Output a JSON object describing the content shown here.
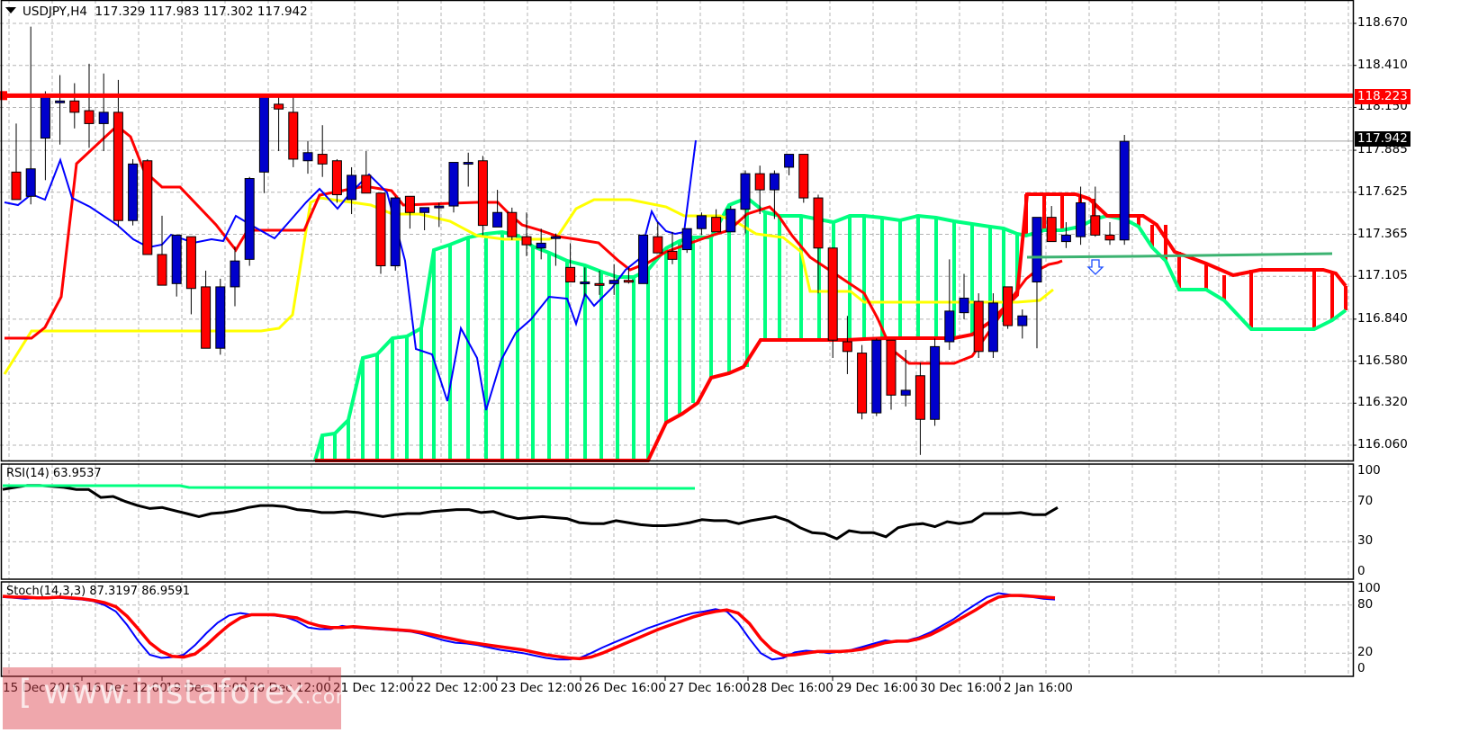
{
  "header": {
    "symbol": "USDJPY,H4",
    "ohlc": "117.329 117.983 117.302 117.942"
  },
  "price_axis": {
    "ticks": [
      "118.670",
      "118.410",
      "118.150",
      "117.885",
      "117.625",
      "117.365",
      "117.105",
      "116.840",
      "116.580",
      "116.320",
      "116.060"
    ],
    "resistance_tag": "118.223",
    "current_tag": "117.942"
  },
  "rsi_panel": {
    "label": "RSI(14) 63.9537",
    "ticks": [
      "100",
      "70",
      "30",
      "0"
    ]
  },
  "stoch_panel": {
    "label": "Stoch(14,3,3) 87.3197 86.9591",
    "ticks": [
      "100",
      "80",
      "20",
      "0"
    ]
  },
  "time_axis": {
    "labels": [
      "15 Dec 2016",
      "16 Dec 12:00",
      "19 Dec 12:00",
      "20 Dec 12:00",
      "21 Dec 12:00",
      "22 Dec 12:00",
      "23 Dec 12:00",
      "26 Dec 16:00",
      "27 Dec 16:00",
      "28 Dec 16:00",
      "29 Dec 16:00",
      "30 Dec 16:00",
      "2 Jan 16:00"
    ]
  },
  "watermark": {
    "prefix": "[ www.instaforex",
    "suffix": ".com ]"
  },
  "colors": {
    "bull_candle": "#0000cc",
    "bear_candle": "#ff0000",
    "tenkan": "#ff0000",
    "kijun": "#0000ff",
    "chikou": "#0000ff",
    "senkou_a": "#00ff80",
    "senkou_b": "#ff0000",
    "yellow_line": "#ffff00",
    "resistance": "#ff0000",
    "support_line": "#3cb371",
    "rsi_line": "#000000",
    "rsi_trend": "#00ff80",
    "stoch_main": "#0000ff",
    "stoch_signal": "#ff0000"
  },
  "chart_data": {
    "type": "candlestick",
    "title": "USDJPY,H4",
    "ohlc_last": {
      "open": 117.329,
      "high": 117.983,
      "low": 117.302,
      "close": 117.942
    },
    "ylim": [
      116.0,
      118.8
    ],
    "y_ticks": [
      118.67,
      118.41,
      118.15,
      117.885,
      117.625,
      117.365,
      117.105,
      116.84,
      116.58,
      116.32,
      116.06
    ],
    "x_labels": [
      "15 Dec 2016",
      "16 Dec 12:00",
      "19 Dec 12:00",
      "20 Dec 12:00",
      "21 Dec 12:00",
      "22 Dec 12:00",
      "23 Dec 12:00",
      "26 Dec 16:00",
      "27 Dec 16:00",
      "28 Dec 16:00",
      "29 Dec 16:00",
      "30 Dec 16:00",
      "2 Jan 16:00"
    ],
    "grid": true,
    "candles": [
      {
        "o": 117.75,
        "h": 118.05,
        "l": 117.58,
        "c": 117.58
      },
      {
        "o": 117.6,
        "h": 118.65,
        "l": 117.55,
        "c": 117.77
      },
      {
        "o": 117.96,
        "h": 118.25,
        "l": 117.7,
        "c": 118.23
      },
      {
        "o": 118.18,
        "h": 118.35,
        "l": 117.92,
        "c": 118.19
      },
      {
        "o": 118.19,
        "h": 118.3,
        "l": 118.02,
        "c": 118.12
      },
      {
        "o": 118.13,
        "h": 118.42,
        "l": 117.9,
        "c": 118.05
      },
      {
        "o": 118.05,
        "h": 118.36,
        "l": 117.88,
        "c": 118.12
      },
      {
        "o": 118.12,
        "h": 118.32,
        "l": 117.41,
        "c": 117.45
      },
      {
        "o": 117.45,
        "h": 117.83,
        "l": 117.42,
        "c": 117.8
      },
      {
        "o": 117.82,
        "h": 117.83,
        "l": 117.28,
        "c": 117.24
      },
      {
        "o": 117.24,
        "h": 117.48,
        "l": 117.05,
        "c": 117.05
      },
      {
        "o": 117.06,
        "h": 117.36,
        "l": 116.98,
        "c": 117.36
      },
      {
        "o": 117.35,
        "h": 117.35,
        "l": 116.87,
        "c": 117.03
      },
      {
        "o": 117.04,
        "h": 117.14,
        "l": 116.66,
        "c": 116.66
      },
      {
        "o": 116.66,
        "h": 117.09,
        "l": 116.62,
        "c": 117.04
      },
      {
        "o": 117.04,
        "h": 117.29,
        "l": 116.92,
        "c": 117.2
      },
      {
        "o": 117.21,
        "h": 117.72,
        "l": 117.17,
        "c": 117.71
      },
      {
        "o": 117.75,
        "h": 118.23,
        "l": 117.62,
        "c": 118.23
      },
      {
        "o": 118.17,
        "h": 118.22,
        "l": 117.88,
        "c": 118.14
      },
      {
        "o": 118.12,
        "h": 118.22,
        "l": 117.78,
        "c": 117.83
      },
      {
        "o": 117.82,
        "h": 117.94,
        "l": 117.74,
        "c": 117.87
      },
      {
        "o": 117.86,
        "h": 118.04,
        "l": 117.72,
        "c": 117.8
      },
      {
        "o": 117.82,
        "h": 117.83,
        "l": 117.56,
        "c": 117.61
      },
      {
        "o": 117.58,
        "h": 117.78,
        "l": 117.49,
        "c": 117.73
      },
      {
        "o": 117.73,
        "h": 117.88,
        "l": 117.62,
        "c": 117.62
      },
      {
        "o": 117.62,
        "h": 117.62,
        "l": 117.12,
        "c": 117.17
      },
      {
        "o": 117.17,
        "h": 117.6,
        "l": 117.14,
        "c": 117.59
      },
      {
        "o": 117.6,
        "h": 117.6,
        "l": 117.4,
        "c": 117.5
      },
      {
        "o": 117.5,
        "h": 117.53,
        "l": 117.39,
        "c": 117.53
      },
      {
        "o": 117.53,
        "h": 117.56,
        "l": 117.41,
        "c": 117.54
      },
      {
        "o": 117.54,
        "h": 117.8,
        "l": 117.5,
        "c": 117.81
      },
      {
        "o": 117.81,
        "h": 117.87,
        "l": 117.66,
        "c": 117.81
      },
      {
        "o": 117.82,
        "h": 117.85,
        "l": 117.36,
        "c": 117.42
      },
      {
        "o": 117.41,
        "h": 117.64,
        "l": 117.47,
        "c": 117.5
      },
      {
        "o": 117.5,
        "h": 117.53,
        "l": 117.33,
        "c": 117.35
      },
      {
        "o": 117.35,
        "h": 117.5,
        "l": 117.23,
        "c": 117.3
      },
      {
        "o": 117.28,
        "h": 117.4,
        "l": 117.21,
        "c": 117.31
      },
      {
        "o": 117.34,
        "h": 117.37,
        "l": 117.17,
        "c": 117.35
      },
      {
        "o": 117.16,
        "h": 117.31,
        "l": 117.07,
        "c": 117.07
      },
      {
        "o": 117.07,
        "h": 117.16,
        "l": 116.98,
        "c": 117.07
      },
      {
        "o": 117.06,
        "h": 117.14,
        "l": 116.99,
        "c": 117.05
      },
      {
        "o": 117.06,
        "h": 117.18,
        "l": 116.99,
        "c": 117.08
      },
      {
        "o": 117.08,
        "h": 117.16,
        "l": 117.06,
        "c": 117.07
      },
      {
        "o": 117.06,
        "h": 117.33,
        "l": 117.06,
        "c": 117.36
      },
      {
        "o": 117.35,
        "h": 117.44,
        "l": 117.25,
        "c": 117.25
      },
      {
        "o": 117.26,
        "h": 117.38,
        "l": 117.18,
        "c": 117.21
      },
      {
        "o": 117.27,
        "h": 117.4,
        "l": 117.25,
        "c": 117.4
      },
      {
        "o": 117.4,
        "h": 117.5,
        "l": 117.36,
        "c": 117.48
      },
      {
        "o": 117.47,
        "h": 117.52,
        "l": 117.4,
        "c": 117.38
      },
      {
        "o": 117.38,
        "h": 117.54,
        "l": 117.42,
        "c": 117.52
      },
      {
        "o": 117.52,
        "h": 117.76,
        "l": 117.37,
        "c": 117.74
      },
      {
        "o": 117.74,
        "h": 117.79,
        "l": 117.49,
        "c": 117.64
      },
      {
        "o": 117.64,
        "h": 117.76,
        "l": 117.46,
        "c": 117.74
      },
      {
        "o": 117.78,
        "h": 117.86,
        "l": 117.73,
        "c": 117.86
      },
      {
        "o": 117.86,
        "h": 117.86,
        "l": 117.56,
        "c": 117.59
      },
      {
        "o": 117.59,
        "h": 117.61,
        "l": 117.0,
        "c": 117.28
      },
      {
        "o": 117.28,
        "h": 117.28,
        "l": 116.6,
        "c": 116.71
      },
      {
        "o": 116.7,
        "h": 116.86,
        "l": 116.5,
        "c": 116.64
      },
      {
        "o": 116.63,
        "h": 116.68,
        "l": 116.22,
        "c": 116.26
      },
      {
        "o": 116.26,
        "h": 116.72,
        "l": 116.24,
        "c": 116.71
      },
      {
        "o": 116.71,
        "h": 116.7,
        "l": 116.28,
        "c": 116.37
      },
      {
        "o": 116.37,
        "h": 116.65,
        "l": 116.3,
        "c": 116.4
      },
      {
        "o": 116.49,
        "h": 116.57,
        "l": 116.0,
        "c": 116.22
      },
      {
        "o": 116.22,
        "h": 116.72,
        "l": 116.18,
        "c": 116.67
      },
      {
        "o": 116.7,
        "h": 117.21,
        "l": 116.65,
        "c": 116.89
      },
      {
        "o": 116.88,
        "h": 117.12,
        "l": 116.84,
        "c": 116.97
      },
      {
        "o": 116.95,
        "h": 117.0,
        "l": 116.6,
        "c": 116.64
      },
      {
        "o": 116.64,
        "h": 117.0,
        "l": 116.6,
        "c": 116.94
      },
      {
        "o": 117.04,
        "h": 117.04,
        "l": 116.78,
        "c": 116.8
      },
      {
        "o": 116.8,
        "h": 116.9,
        "l": 116.72,
        "c": 116.86
      },
      {
        "o": 117.07,
        "h": 117.07,
        "l": 116.66,
        "c": 117.47
      },
      {
        "o": 117.47,
        "h": 117.54,
        "l": 117.33,
        "c": 117.32
      },
      {
        "o": 117.32,
        "h": 117.44,
        "l": 117.28,
        "c": 117.36
      },
      {
        "o": 117.35,
        "h": 117.66,
        "l": 117.3,
        "c": 117.56
      },
      {
        "o": 117.48,
        "h": 117.66,
        "l": 117.35,
        "c": 117.36
      },
      {
        "o": 117.36,
        "h": 117.44,
        "l": 117.3,
        "c": 117.33
      },
      {
        "o": 117.33,
        "h": 117.98,
        "l": 117.3,
        "c": 117.94
      }
    ],
    "horizontal_levels": [
      {
        "name": "resistance",
        "price": 118.223,
        "color": "#ff0000"
      },
      {
        "name": "support",
        "price": 117.23,
        "color": "#3cb371"
      }
    ],
    "annotations": [
      {
        "type": "down-arrow",
        "x_index": 81,
        "price": 117.17
      }
    ],
    "rsi": {
      "name": "RSI(14)",
      "last": 63.9537,
      "ylim": [
        0,
        100
      ],
      "levels": [
        30,
        70
      ],
      "values": [
        82,
        84,
        86,
        86,
        85,
        84,
        82,
        82,
        74,
        75,
        70,
        66,
        63,
        64,
        61,
        58,
        55,
        58,
        59,
        61,
        64,
        66,
        66,
        65,
        62,
        61,
        59,
        59,
        60,
        59,
        57,
        55,
        57,
        58,
        58,
        60,
        61,
        62,
        62,
        59,
        60,
        56,
        53,
        54,
        55,
        54,
        53,
        49,
        48,
        48,
        51,
        49,
        47,
        46,
        46,
        47,
        49,
        52,
        51,
        51,
        48,
        51,
        53,
        55,
        51,
        44,
        39,
        38,
        33,
        41,
        39,
        39,
        35,
        44,
        47,
        48,
        45,
        50,
        48,
        50,
        58,
        58,
        58,
        59,
        57,
        57,
        64
      ],
      "trendline": {
        "from": [
          0,
          90
        ],
        "to": [
          49,
          88
        ],
        "color": "#00ff80"
      }
    },
    "stochastic": {
      "name": "Stoch(14,3,3)",
      "main_last": 87.3197,
      "signal_last": 86.9591,
      "ylim": [
        0,
        100
      ],
      "levels": [
        20,
        80
      ],
      "main": [
        90,
        89,
        88,
        89,
        89,
        89,
        88,
        87,
        85,
        80,
        72,
        55,
        35,
        18,
        14,
        15,
        18,
        30,
        45,
        58,
        67,
        70,
        68,
        68,
        67,
        65,
        60,
        52,
        50,
        50,
        54,
        52,
        51,
        50,
        49,
        48,
        47,
        44,
        40,
        36,
        33,
        32,
        30,
        27,
        24,
        22,
        20,
        17,
        14,
        12,
        12,
        14,
        20,
        27,
        33,
        39,
        45,
        51,
        56,
        61,
        66,
        70,
        72,
        75,
        72,
        58,
        38,
        20,
        12,
        14,
        21,
        23,
        22,
        20,
        22,
        24,
        28,
        32,
        36,
        34,
        36,
        40,
        46,
        54,
        62,
        72,
        81,
        90,
        95,
        93,
        91,
        90,
        88,
        87
      ],
      "signal": [
        91,
        90,
        90,
        89,
        89,
        90,
        89,
        88,
        86,
        83,
        78,
        66,
        50,
        33,
        22,
        16,
        15,
        19,
        30,
        43,
        55,
        64,
        68,
        68,
        68,
        66,
        64,
        58,
        54,
        52,
        52,
        53,
        52,
        51,
        50,
        49,
        48,
        46,
        43,
        40,
        37,
        34,
        32,
        30,
        28,
        26,
        24,
        21,
        18,
        16,
        14,
        13,
        15,
        20,
        26,
        32,
        38,
        44,
        50,
        55,
        60,
        65,
        69,
        72,
        74,
        70,
        57,
        38,
        24,
        17,
        18,
        20,
        22,
        22,
        22,
        23,
        25,
        29,
        33,
        35,
        35,
        38,
        43,
        50,
        58,
        66,
        74,
        83,
        90,
        92,
        92,
        91,
        90,
        89
      ]
    }
  }
}
